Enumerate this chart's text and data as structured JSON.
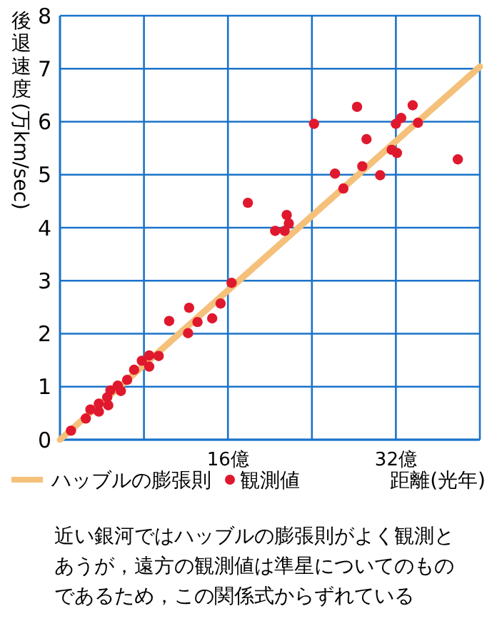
{
  "chart_data": {
    "type": "scatter",
    "xlabel": "距離(光年)",
    "ylabel": "後退速度(万km/sec)",
    "xlim": [
      0,
      40
    ],
    "ylim": [
      0,
      8
    ],
    "xticks": [
      {
        "value": 8,
        "label": null
      },
      {
        "value": 16,
        "label": "16億"
      },
      {
        "value": 24,
        "label": null
      },
      {
        "value": 32,
        "label": "32億"
      },
      {
        "value": 40,
        "label": null
      }
    ],
    "yticks": [
      0,
      1,
      2,
      3,
      4,
      5,
      6,
      7,
      8
    ],
    "grid": true,
    "legend": "bottom",
    "series": [
      {
        "name": "ハッブルの膨張則",
        "type": "line",
        "color": "#f5c07a",
        "x": [
          0,
          40
        ],
        "values": [
          0,
          7.04
        ]
      },
      {
        "name": "観測値",
        "marker": "circle",
        "color": "#e0182d",
        "x": [
          1.05,
          2.46,
          2.9,
          3.7,
          3.7,
          4.6,
          4.5,
          4.8,
          5.5,
          5.8,
          6.4,
          7.06,
          7.8,
          8.5,
          8.5,
          9.4,
          10.4,
          12.2,
          12.3,
          13.1,
          14.5,
          15.3,
          16.35,
          20.5,
          21.4,
          21.8,
          21.6,
          17.9,
          24.2,
          26.2,
          27.0,
          28.3,
          28.8,
          29.2,
          30.5,
          31.6,
          32.1,
          32.0,
          32.5,
          33.6,
          34.1,
          37.9
        ],
        "values": [
          0.17,
          0.4,
          0.57,
          0.53,
          0.68,
          0.65,
          0.8,
          0.93,
          1.02,
          0.92,
          1.13,
          1.32,
          1.49,
          1.59,
          1.38,
          1.58,
          2.24,
          2.01,
          2.49,
          2.22,
          2.29,
          2.57,
          2.96,
          3.94,
          3.94,
          4.08,
          4.24,
          4.47,
          5.96,
          5.02,
          4.74,
          6.28,
          5.16,
          5.67,
          4.99,
          5.47,
          5.41,
          5.96,
          6.07,
          6.31,
          5.98,
          5.29
        ]
      }
    ],
    "annotations": [
      "近い銀河ではハッブルの膨張則がよく観測とあうが，遠方の観測値は準星についてのものであるため，この関係式からずれている"
    ]
  }
}
